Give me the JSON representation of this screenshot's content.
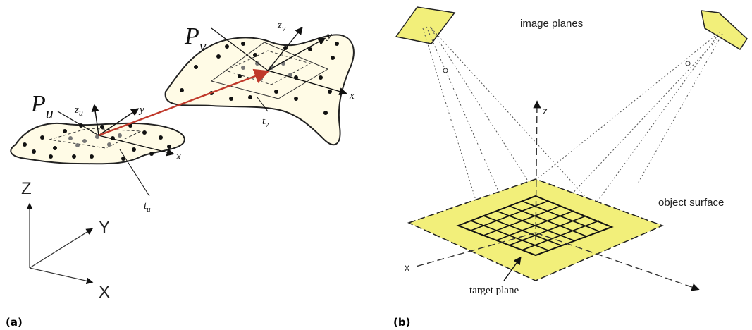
{
  "panel_a": {
    "caption": "(a)",
    "label_pu_main": "P",
    "label_pu_sub": "u",
    "label_pv_main": "P",
    "label_pv_sub": "v",
    "label_zu_main": "z",
    "label_zu_sub": "u",
    "label_zv_main": "z",
    "label_zv_sub": "v",
    "label_y_u": "y",
    "label_x_u": "x",
    "label_y_v": "y",
    "label_x_v": "x",
    "label_tu_main": "t",
    "label_tu_sub": "u",
    "label_tv_main": "t",
    "label_tv_sub": "v",
    "axis_Z": "Z",
    "axis_Y": "Y",
    "axis_X": "X",
    "surface_fill": "#fffbe6",
    "vector_color": "#c0392b"
  },
  "panel_b": {
    "caption": "(b)",
    "label_image_planes": "image planes",
    "label_object_surface": "object surface",
    "label_target_plane": "target plane",
    "label_z": "z",
    "label_x": "x",
    "plane_color": "#f2ef7a"
  }
}
